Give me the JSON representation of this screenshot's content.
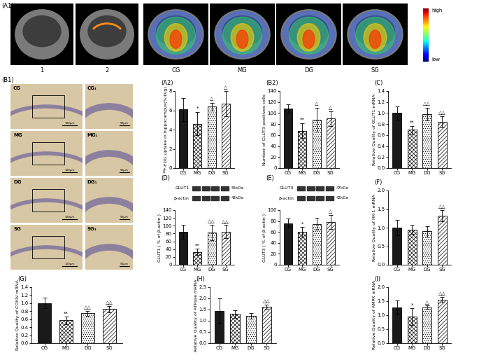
{
  "images": {
    "panel_label": "(A1)",
    "labels": [
      "1",
      "2",
      "CG",
      "MG",
      "DG",
      "SG"
    ],
    "colorbar": {
      "high": "high",
      "low": "low"
    }
  },
  "histology": {
    "panel_label": "(B1)",
    "rows": [
      {
        "left": "CG",
        "right": "CG₁"
      },
      {
        "left": "MG",
        "right": "MG₁"
      },
      {
        "left": "DG",
        "right": "DG₁"
      },
      {
        "left": "SG",
        "right": "SG₁"
      }
    ],
    "scale_labels": [
      "100μm",
      "50μm"
    ]
  },
  "chart_data": [
    {
      "type": "bar",
      "panel_label": "(A2)",
      "y_label": "¹⁸F-FDG uptake in hippocampus(%ID/g)",
      "categories": [
        "CG",
        "MG",
        "DG",
        "SG"
      ],
      "values": [
        6.1,
        4.6,
        6.4,
        6.7
      ],
      "errors": [
        1.2,
        1.2,
        0.4,
        1.3
      ],
      "significance": [
        null,
        "*",
        "△",
        "△"
      ],
      "ylim": [
        0,
        8
      ],
      "yticks": [
        0,
        2,
        4,
        6,
        8
      ],
      "colors": [
        "#1a1a1a",
        "#ffffff",
        "#ffffff",
        "#ffffff"
      ]
    },
    {
      "type": "bar",
      "panel_label": "(B2)",
      "y_label": "Number of GLUT3 positives cells",
      "categories": [
        "CG",
        "MG",
        "DG",
        "SG"
      ],
      "values": [
        108,
        68,
        88,
        90
      ],
      "errors": [
        8,
        13,
        22,
        13
      ],
      "significance": [
        null,
        "**",
        "△",
        "△"
      ],
      "ylim": [
        0,
        140
      ],
      "yticks": [
        0,
        20,
        40,
        60,
        80,
        100,
        120,
        140
      ],
      "colors": [
        "#1a1a1a",
        "#ffffff",
        "#ffffff",
        "#ffffff"
      ]
    },
    {
      "type": "bar",
      "panel_label": "(C)",
      "y_label": "Relative Quality of GLUT1 mRNA",
      "categories": [
        "CG",
        "MG",
        "DG",
        "SG"
      ],
      "values": [
        1.0,
        0.7,
        0.98,
        0.84
      ],
      "errors": [
        0.12,
        0.07,
        0.12,
        0.1
      ],
      "significance": [
        null,
        "**",
        "△△",
        "△△"
      ],
      "ylim": [
        0,
        1.4
      ],
      "yticks": [
        {
          "value": 0,
          "label": "0.0"
        },
        {
          "value": 0.2,
          "label": "0.2"
        },
        {
          "value": 0.4,
          "label": "0.4"
        },
        {
          "value": 0.6,
          "label": "0.6"
        },
        {
          "value": 0.8,
          "label": "0.8"
        },
        {
          "value": 1.0,
          "label": "1.0"
        },
        {
          "value": 1.2,
          "label": "1.2"
        },
        {
          "value": 1.4,
          "label": "1.4"
        }
      ],
      "colors": [
        "#1a1a1a",
        "#ffffff",
        "#ffffff",
        "#ffffff"
      ]
    },
    {
      "type": "bar",
      "panel_label": "(D)",
      "y_label": "GLUT1 ( % of β-actin )",
      "categories": [
        "CG",
        "MG",
        "DG",
        "SG"
      ],
      "values": [
        85,
        33,
        83,
        85
      ],
      "errors": [
        18,
        8,
        20,
        17
      ],
      "significance": [
        null,
        "**",
        "△△",
        "△△"
      ],
      "ylim": [
        0,
        140
      ],
      "yticks": [
        0,
        20,
        40,
        60,
        80,
        100,
        120,
        140
      ],
      "colors": [
        "#1a1a1a",
        "#ffffff",
        "#ffffff",
        "#ffffff"
      ],
      "blot": [
        {
          "name": "GLUT1",
          "size": "55kDa"
        },
        {
          "name": "β-actin",
          "size": "42kDa"
        }
      ]
    },
    {
      "type": "bar",
      "panel_label": "(E)",
      "y_label": "GLUT3 ( % of β-actin )",
      "categories": [
        "CG",
        "MG",
        "DG",
        "SG"
      ],
      "values": [
        76,
        60,
        75,
        78
      ],
      "errors": [
        8,
        9,
        11,
        13
      ],
      "significance": [
        null,
        "*",
        null,
        "△"
      ],
      "ylim": [
        0,
        100
      ],
      "yticks": [
        0,
        20,
        40,
        60,
        80,
        100
      ],
      "colors": [
        "#1a1a1a",
        "#ffffff",
        "#ffffff",
        "#ffffff"
      ],
      "blot": [
        {
          "name": "GLUT3",
          "size": "47kDa"
        },
        {
          "name": "β-actin",
          "size": "42kDa"
        }
      ]
    },
    {
      "type": "bar",
      "panel_label": "(F)",
      "y_label": "Relative Quality of HK-1 mRNA",
      "categories": [
        "CG",
        "MG",
        "DG",
        "SG"
      ],
      "values": [
        1.0,
        0.95,
        0.9,
        1.32
      ],
      "errors": [
        0.2,
        0.12,
        0.14,
        0.15
      ],
      "significance": [
        null,
        null,
        null,
        "△△"
      ],
      "ylim": [
        0,
        2.0
      ],
      "yticks": [
        {
          "value": 0,
          "label": "0.0"
        },
        {
          "value": 0.5,
          "label": "0.5"
        },
        {
          "value": 1.0,
          "label": "1.0"
        },
        {
          "value": 1.5,
          "label": "1.5"
        },
        {
          "value": 2.0,
          "label": "2.0"
        }
      ],
      "colors": [
        "#1a1a1a",
        "#ffffff",
        "#ffffff",
        "#ffffff"
      ]
    },
    {
      "type": "bar",
      "panel_label": "(G)",
      "y_label": "Relative Quality of COXIV mRNA",
      "categories": [
        "CG",
        "MG",
        "DG",
        "SG"
      ],
      "values": [
        1.0,
        0.57,
        0.75,
        0.85
      ],
      "errors": [
        0.13,
        0.09,
        0.06,
        0.08
      ],
      "significance": [
        null,
        "**",
        "△△",
        "△△"
      ],
      "ylim": [
        0,
        1.4
      ],
      "yticks": [
        {
          "value": 0,
          "label": "0.0"
        },
        {
          "value": 0.2,
          "label": "0.2"
        },
        {
          "value": 0.4,
          "label": "0.4"
        },
        {
          "value": 0.6,
          "label": "0.6"
        },
        {
          "value": 0.8,
          "label": "0.8"
        },
        {
          "value": 1.0,
          "label": "1.0"
        },
        {
          "value": 1.2,
          "label": "1.2"
        },
        {
          "value": 1.4,
          "label": "1.4"
        }
      ],
      "colors": [
        "#1a1a1a",
        "#ffffff",
        "#ffffff",
        "#ffffff"
      ]
    },
    {
      "type": "bar",
      "panel_label": "(H)",
      "y_label": "Relative Quality of ATPase mRNA",
      "categories": [
        "CG",
        "MG",
        "DG",
        "SG"
      ],
      "values": [
        1.45,
        1.3,
        1.22,
        1.63
      ],
      "errors": [
        0.55,
        0.18,
        0.12,
        0.1
      ],
      "significance": [
        null,
        null,
        null,
        "△△"
      ],
      "ylim": [
        0,
        2.5
      ],
      "yticks": [
        {
          "value": 0,
          "label": "0.0"
        },
        {
          "value": 0.5,
          "label": "0.5"
        },
        {
          "value": 1.0,
          "label": "1.0"
        },
        {
          "value": 1.5,
          "label": "1.5"
        },
        {
          "value": 2.0,
          "label": "2.0"
        },
        {
          "value": 2.5,
          "label": "2.5"
        }
      ],
      "colors": [
        "#1a1a1a",
        "#ffffff",
        "#ffffff",
        "#ffffff"
      ]
    },
    {
      "type": "bar",
      "panel_label": "(I)",
      "y_label": "Relative Quality of AMPK mRNA",
      "categories": [
        "CG",
        "MG",
        "DG",
        "SG"
      ],
      "values": [
        1.28,
        0.95,
        1.28,
        1.56
      ],
      "errors": [
        0.25,
        0.3,
        0.06,
        0.1
      ],
      "significance": [
        null,
        "*",
        "△",
        "△△"
      ],
      "ylim": [
        0,
        2.0
      ],
      "yticks": [
        {
          "value": 0,
          "label": "0.0"
        },
        {
          "value": 0.5,
          "label": "0.5"
        },
        {
          "value": 1.0,
          "label": "1.0"
        },
        {
          "value": 1.5,
          "label": "1.5"
        },
        {
          "value": 2.0,
          "label": "2.0"
        }
      ],
      "colors": [
        "#1a1a1a",
        "#ffffff",
        "#ffffff",
        "#ffffff"
      ]
    }
  ]
}
